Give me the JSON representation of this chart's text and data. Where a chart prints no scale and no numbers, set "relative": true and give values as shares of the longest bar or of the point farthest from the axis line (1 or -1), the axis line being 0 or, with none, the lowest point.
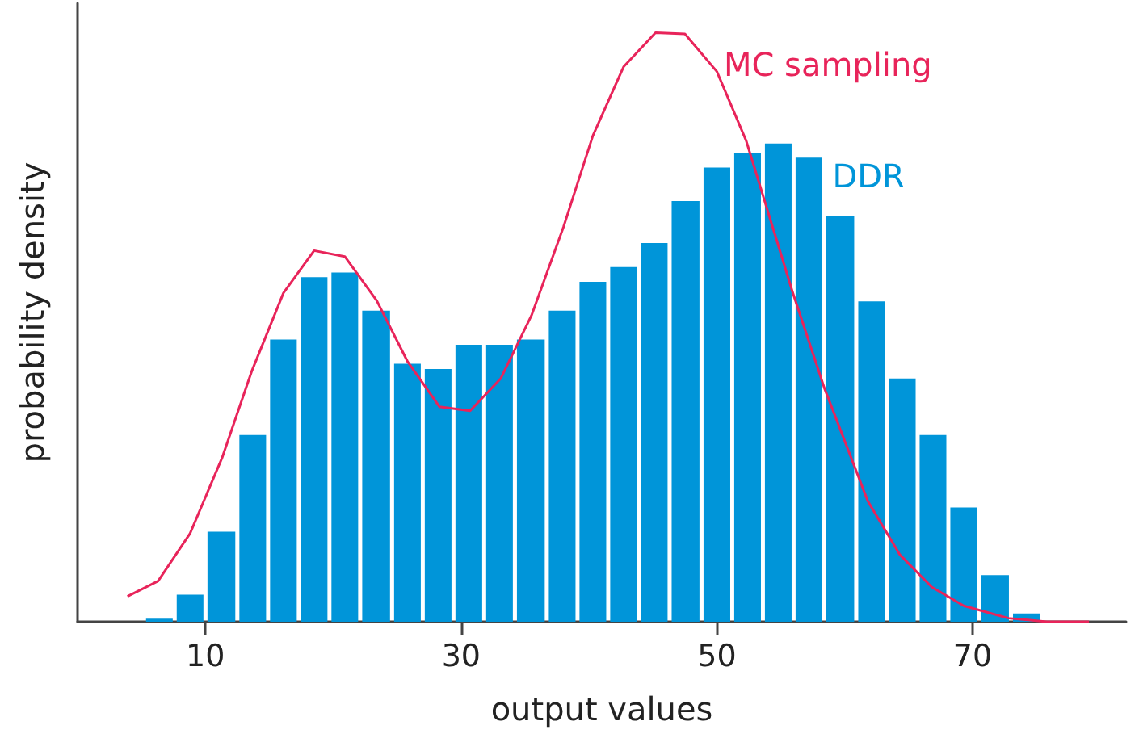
{
  "chart_data": {
    "type": "histogram",
    "xlabel": "output values",
    "ylabel": "probability density",
    "relative": true,
    "xlim": [
      0,
      82
    ],
    "xticks": [
      10,
      30,
      50,
      70
    ],
    "grid": false,
    "legend": false,
    "series": [
      {
        "name": "DDR",
        "color": "#0095d9",
        "bins": [
          5.2,
          7.6,
          10.0,
          12.5,
          14.9,
          17.3,
          19.7,
          22.1,
          24.6,
          27.0,
          29.4,
          31.8,
          34.2,
          36.7,
          39.1,
          41.5,
          43.9,
          46.3,
          48.8,
          51.2,
          53.6,
          56.0,
          58.4,
          60.9,
          63.3,
          65.7,
          68.1,
          70.5,
          73.0,
          75.4
        ],
        "values": [
          0.005,
          0.046,
          0.153,
          0.317,
          0.479,
          0.585,
          0.593,
          0.528,
          0.438,
          0.429,
          0.47,
          0.47,
          0.479,
          0.528,
          0.577,
          0.602,
          0.643,
          0.714,
          0.771,
          0.796,
          0.812,
          0.788,
          0.689,
          0.544,
          0.413,
          0.317,
          0.194,
          0.079,
          0.014
        ]
      },
      {
        "type": "line",
        "name": "MC sampling",
        "color": "#e8245a",
        "x": [
          3.9,
          6.3,
          8.8,
          11.3,
          13.6,
          16.1,
          18.5,
          20.9,
          23.4,
          25.8,
          28.3,
          30.7,
          33.1,
          35.5,
          38.0,
          40.3,
          42.7,
          45.2,
          47.5,
          50.0,
          52.3,
          55.9,
          58.4,
          61.8,
          64.3,
          66.8,
          69.3,
          72.8,
          75.8,
          79.1
        ],
        "values": [
          0.043,
          0.069,
          0.15,
          0.278,
          0.424,
          0.558,
          0.63,
          0.62,
          0.545,
          0.442,
          0.365,
          0.358,
          0.413,
          0.52,
          0.67,
          0.825,
          0.942,
          1,
          0.998,
          0.934,
          0.816,
          0.561,
          0.397,
          0.205,
          0.114,
          0.059,
          0.027,
          0.006,
          0,
          0
        ]
      }
    ]
  }
}
